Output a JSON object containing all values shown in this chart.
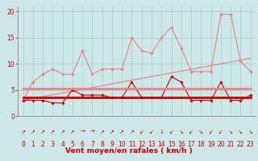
{
  "x": [
    0,
    1,
    2,
    3,
    4,
    5,
    6,
    7,
    8,
    9,
    10,
    11,
    12,
    13,
    14,
    15,
    16,
    17,
    18,
    19,
    20,
    21,
    22,
    23
  ],
  "series": [
    {
      "name": "rafales_max",
      "color": "#f08080",
      "linewidth": 0.8,
      "marker": "D",
      "markersize": 1.8,
      "values": [
        3,
        6.5,
        8,
        9,
        8,
        8,
        12.5,
        8,
        9,
        9,
        9,
        15,
        12.5,
        12,
        15,
        17,
        13,
        8.5,
        8.5,
        8.5,
        19.5,
        19.5,
        10.5,
        8.5
      ]
    },
    {
      "name": "rafales_linear",
      "color": "#f08080",
      "linewidth": 0.8,
      "marker": null,
      "markersize": 0,
      "values": [
        3.0,
        3.35,
        3.7,
        4.05,
        4.4,
        4.75,
        5.1,
        5.45,
        5.8,
        6.15,
        6.5,
        6.85,
        7.2,
        7.55,
        7.9,
        8.25,
        8.6,
        8.95,
        9.3,
        9.65,
        10.0,
        10.35,
        10.7,
        11.05
      ]
    },
    {
      "name": "vent_moy",
      "color": "#cc0000",
      "linewidth": 0.8,
      "marker": "D",
      "markersize": 1.8,
      "values": [
        3,
        3,
        3,
        2.5,
        2.5,
        5,
        4,
        4,
        4,
        3.5,
        3.5,
        6.5,
        3.5,
        3.5,
        3.5,
        7.5,
        6.5,
        3,
        3,
        3,
        6.5,
        3,
        3,
        4
      ]
    },
    {
      "name": "vent_moy_linear",
      "color": "#cc0000",
      "linewidth": 2.0,
      "marker": null,
      "markersize": 0,
      "values": [
        3.5,
        3.5,
        3.5,
        3.5,
        3.5,
        3.5,
        3.5,
        3.5,
        3.5,
        3.5,
        3.5,
        3.5,
        3.5,
        3.5,
        3.5,
        3.5,
        3.5,
        3.5,
        3.5,
        3.5,
        3.5,
        3.5,
        3.5,
        3.5
      ]
    },
    {
      "name": "rafales_avg_flat",
      "color": "#f08080",
      "linewidth": 2.0,
      "marker": null,
      "markersize": 0,
      "values": [
        5.2,
        5.2,
        5.2,
        5.2,
        5.2,
        5.2,
        5.2,
        5.2,
        5.2,
        5.2,
        5.2,
        5.2,
        5.2,
        5.2,
        5.2,
        5.2,
        5.2,
        5.2,
        5.2,
        5.2,
        5.2,
        5.2,
        5.2,
        5.2
      ]
    }
  ],
  "arrows": [
    "↗",
    "↗",
    "↗",
    "↗",
    "↗",
    "↗",
    "→",
    "→",
    "↗",
    "↗",
    "↗",
    "↗",
    "↙",
    "↙",
    "↓",
    "↙",
    "↘",
    "↙",
    "↘",
    "↙",
    "↙",
    "↘",
    "↘",
    "↘"
  ],
  "xlabel": "Vent moyen/en rafales ( km/h )",
  "ylim": [
    0,
    21
  ],
  "xlim": [
    -0.5,
    23.5
  ],
  "yticks": [
    0,
    5,
    10,
    15,
    20
  ],
  "xticks": [
    0,
    1,
    2,
    3,
    4,
    5,
    6,
    7,
    8,
    9,
    10,
    11,
    12,
    13,
    14,
    15,
    16,
    17,
    18,
    19,
    20,
    21,
    22,
    23
  ],
  "bg_color": "#cce8e8",
  "grid_color": "#aacccc",
  "tick_color": "#cc0000",
  "label_color": "#cc0000",
  "xlabel_fontsize": 6.5,
  "tick_fontsize": 5.5,
  "arrow_fontsize": 5
}
